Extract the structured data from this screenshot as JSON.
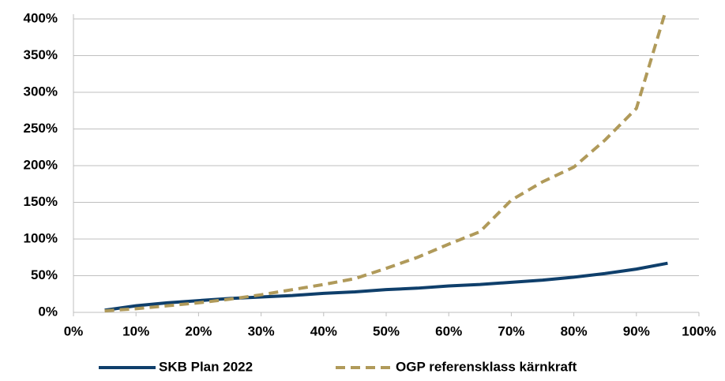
{
  "chart_data": {
    "type": "line",
    "x": [
      5,
      10,
      15,
      20,
      25,
      30,
      35,
      40,
      45,
      50,
      55,
      60,
      65,
      70,
      75,
      80,
      85,
      90,
      95
    ],
    "xlim": [
      0,
      100
    ],
    "xticks": [
      {
        "value": 0,
        "label": "0%"
      },
      {
        "value": 10,
        "label": "10%"
      },
      {
        "value": 20,
        "label": "20%"
      },
      {
        "value": 30,
        "label": "30%"
      },
      {
        "value": 40,
        "label": "40%"
      },
      {
        "value": 50,
        "label": "50%"
      },
      {
        "value": 60,
        "label": "60%"
      },
      {
        "value": 70,
        "label": "70%"
      },
      {
        "value": 80,
        "label": "80%"
      },
      {
        "value": 90,
        "label": "90%"
      },
      {
        "value": 100,
        "label": "100%"
      }
    ],
    "ylim": [
      0,
      400
    ],
    "yticks": [
      {
        "value": 0,
        "label": "0%"
      },
      {
        "value": 50,
        "label": "50%"
      },
      {
        "value": 100,
        "label": "100%"
      },
      {
        "value": 150,
        "label": "150%"
      },
      {
        "value": 200,
        "label": "200%"
      },
      {
        "value": 250,
        "label": "250%"
      },
      {
        "value": 300,
        "label": "300%"
      },
      {
        "value": 350,
        "label": "350%"
      },
      {
        "value": 400,
        "label": "400%"
      }
    ],
    "grid": true,
    "legend": "bottom",
    "series": [
      {
        "name": "SKB Plan 2022",
        "color": "#0f3f6b",
        "line_style": "solid",
        "values": [
          3,
          9,
          13,
          16,
          19,
          21,
          23,
          26,
          28,
          31,
          33,
          36,
          38,
          41,
          44,
          48,
          53,
          59,
          67
        ]
      },
      {
        "name": "OGP referensklass kärnkraft",
        "color": "#b09a5a",
        "line_style": "dashed",
        "values": [
          2,
          5,
          9,
          13,
          18,
          24,
          31,
          38,
          46,
          60,
          75,
          93,
          110,
          153,
          178,
          198,
          235,
          278,
          420
        ]
      }
    ]
  }
}
